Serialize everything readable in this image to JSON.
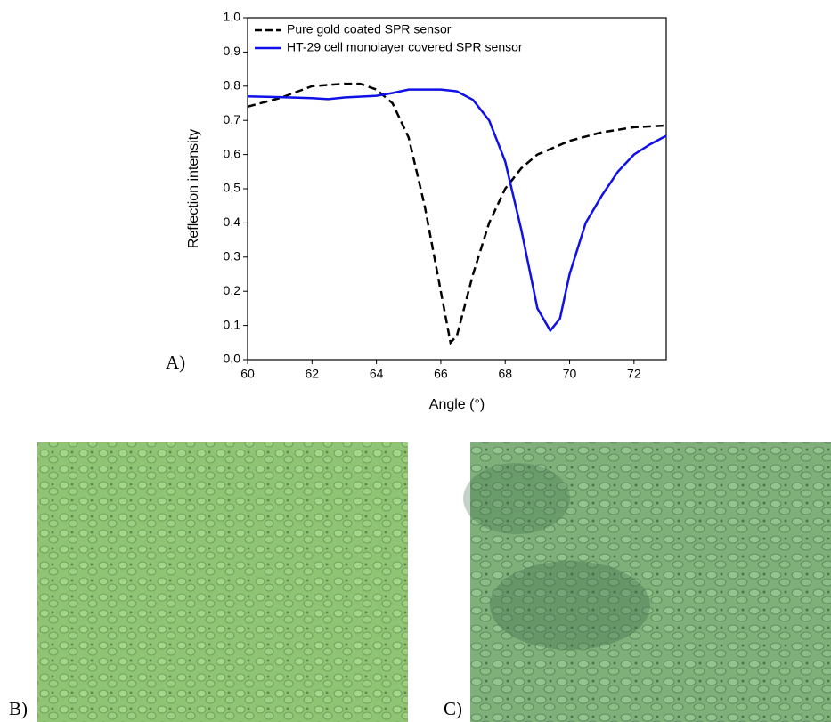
{
  "panel_labels": [
    "A)",
    "B)",
    "C)"
  ],
  "chart_data": {
    "type": "line",
    "x_label": "Angle (°)",
    "y_label": "Reflection intensity",
    "xlim": [
      60,
      73
    ],
    "xticks": [
      60,
      62,
      64,
      66,
      68,
      70,
      72
    ],
    "ylim": [
      0,
      1.0
    ],
    "yticks": [
      {
        "value": 0,
        "label": "0,0"
      },
      {
        "value": 0.1,
        "label": "0,1"
      },
      {
        "value": 0.2,
        "label": "0,2"
      },
      {
        "value": 0.3,
        "label": "0,3"
      },
      {
        "value": 0.4,
        "label": "0,4"
      },
      {
        "value": 0.5,
        "label": "0,5"
      },
      {
        "value": 0.6,
        "label": "0,6"
      },
      {
        "value": 0.7,
        "label": "0,7"
      },
      {
        "value": 0.8,
        "label": "0,8"
      },
      {
        "value": 0.9,
        "label": "0,9"
      },
      {
        "value": 1.0,
        "label": "1,0"
      }
    ],
    "legend": "upper left",
    "series": [
      {
        "name": "Pure gold coated SPR sensor",
        "color": "#000000",
        "dash": true,
        "x": [
          60,
          61,
          62,
          63,
          63.5,
          64,
          64.5,
          65,
          65.5,
          66,
          66.3,
          66.5,
          67,
          67.5,
          68,
          68.5,
          69,
          70,
          71,
          72,
          73
        ],
        "values": [
          0.74,
          0.765,
          0.8,
          0.807,
          0.807,
          0.79,
          0.75,
          0.65,
          0.45,
          0.2,
          0.05,
          0.07,
          0.25,
          0.4,
          0.5,
          0.56,
          0.6,
          0.64,
          0.665,
          0.68,
          0.685
        ]
      },
      {
        "name": "HT-29 cell monolayer covered SPR sensor",
        "color": "#1010e8",
        "dash": false,
        "x": [
          60,
          61,
          62,
          62.5,
          63,
          64,
          64.5,
          65,
          66,
          66.5,
          67,
          67.5,
          68,
          68.5,
          69,
          69.4,
          69.7,
          70,
          70.5,
          71,
          71.5,
          72,
          72.5,
          73
        ],
        "values": [
          0.77,
          0.768,
          0.765,
          0.762,
          0.767,
          0.772,
          0.78,
          0.79,
          0.79,
          0.785,
          0.76,
          0.7,
          0.58,
          0.38,
          0.15,
          0.085,
          0.12,
          0.25,
          0.4,
          0.48,
          0.55,
          0.6,
          0.63,
          0.655
        ]
      }
    ]
  }
}
